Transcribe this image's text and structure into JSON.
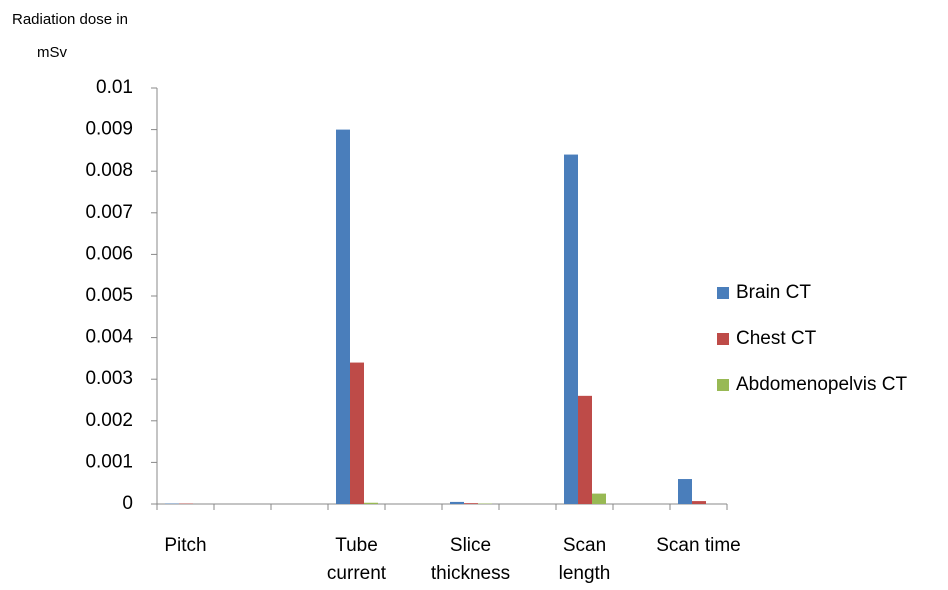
{
  "chart_data": {
    "type": "bar",
    "y_label": [
      "Radiation dose in",
      "mSv"
    ],
    "categories": [
      "Pitch",
      null,
      null,
      "Tube current",
      null,
      "Slice thickness",
      null,
      "Scan length",
      null,
      "Scan time"
    ],
    "series": [
      {
        "name": "Brain CT",
        "color": "#4a7ebb",
        "values": [
          1e-05,
          null,
          null,
          0.009,
          null,
          5e-05,
          null,
          0.0084,
          null,
          0.0006
        ]
      },
      {
        "name": "Chest CT",
        "color": "#be4b48",
        "values": [
          1e-05,
          null,
          null,
          0.0034,
          null,
          2e-05,
          null,
          0.0026,
          null,
          7e-05
        ]
      },
      {
        "name": "Abdomenopelvis CT",
        "color": "#98b954",
        "values": [
          0,
          null,
          null,
          3e-05,
          null,
          1e-05,
          null,
          0.00025,
          null,
          0
        ]
      }
    ],
    "ylim": [
      0,
      0.01
    ],
    "yticks": [
      0,
      0.001,
      0.002,
      0.003,
      0.004,
      0.005,
      0.006,
      0.007,
      0.008,
      0.009,
      0.01
    ],
    "grid": false,
    "legend": "right"
  }
}
